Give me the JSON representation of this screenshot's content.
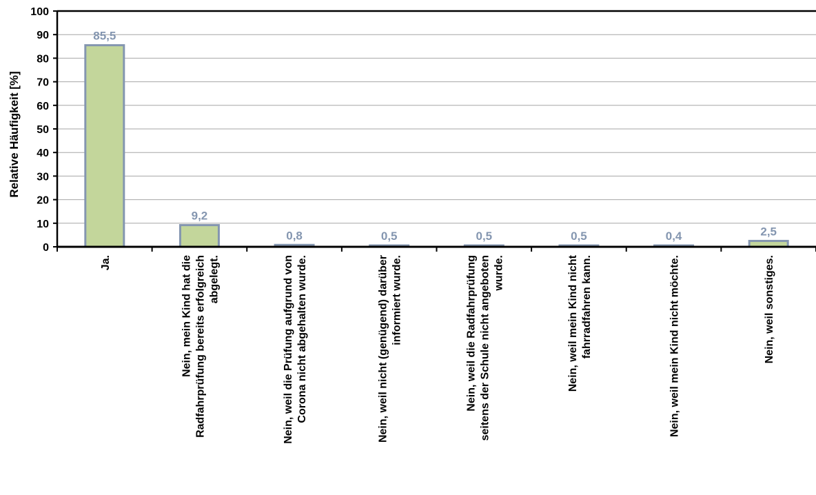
{
  "chart_data": {
    "type": "bar",
    "ylabel": "Relative Häufigkeit [%]",
    "xlabel": "",
    "title": "",
    "ylim": [
      0,
      100
    ],
    "yticks": [
      0,
      10,
      20,
      30,
      40,
      50,
      60,
      70,
      80,
      90,
      100
    ],
    "grid": "horizontal",
    "categories": [
      [
        "Ja."
      ],
      [
        "Nein, mein Kind hat die",
        "Radfahrprüfung bereits erfolgreich",
        "abgelegt."
      ],
      [
        "Nein, weil die Prüfung aufgrund von",
        "Corona nicht abgehalten wurde."
      ],
      [
        "Nein, weil nicht (genügend) darüber",
        "informiert wurde."
      ],
      [
        "Nein, weil die Radfahrprüfung",
        "seitens der Schule nicht angeboten",
        "wurde."
      ],
      [
        "Nein, weil mein Kind nicht",
        "fahrradfahren kann."
      ],
      [
        "Nein, weil mein Kind nicht möchte."
      ],
      [
        "Nein, weil sonstiges."
      ]
    ],
    "values": [
      85.5,
      9.2,
      0.8,
      0.5,
      0.5,
      0.5,
      0.4,
      2.5
    ],
    "value_labels": [
      "85,5",
      "9,2",
      "0,8",
      "0,5",
      "0,5",
      "0,5",
      "0,4",
      "2,5"
    ],
    "colors": {
      "bar_fill": "#c3d69b",
      "bar_stroke": "#8496b0",
      "data_label": "#8496b0",
      "axis": "#000000",
      "grid": "#a6a6a6"
    }
  }
}
